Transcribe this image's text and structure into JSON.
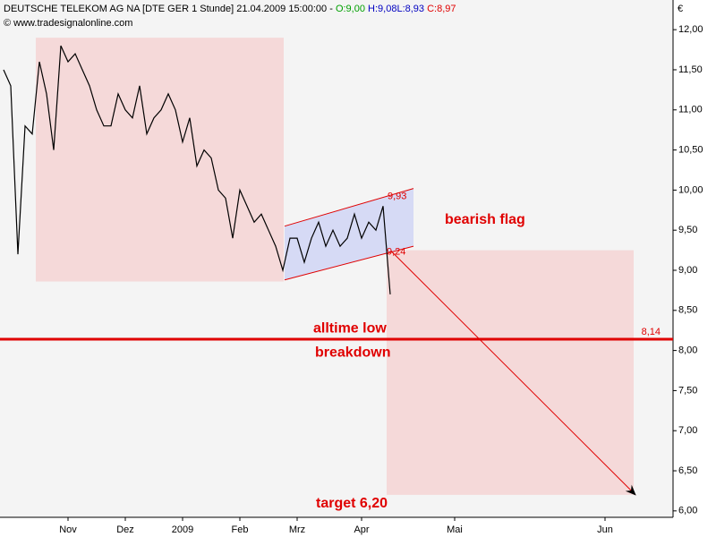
{
  "chart_data": {
    "type": "line",
    "header": {
      "instrument": "DEUTSCHE TELEKOM AG NA [DTE GER  1 Stunde] 21.04.2009 15:00:00 -",
      "open": "O:9,00",
      "high": "H:9,08",
      "low": "L:8,93",
      "close": "C:8,97"
    },
    "copyright": "© www.tradesignalonline.com",
    "y_unit": "€",
    "categories": [
      null,
      null,
      null,
      null,
      null,
      null,
      null,
      null,
      null,
      "Nov",
      null,
      null,
      null,
      null,
      null,
      null,
      null,
      "Dez",
      null,
      null,
      null,
      null,
      null,
      null,
      null,
      "2009",
      null,
      null,
      null,
      null,
      null,
      null,
      null,
      "Feb",
      null,
      null,
      null,
      null,
      null,
      null,
      null,
      "Mrz",
      null,
      null,
      null,
      null,
      null,
      null,
      null,
      null,
      "Apr",
      null,
      null,
      null,
      null,
      null,
      null,
      null,
      null,
      null,
      null,
      null,
      null,
      "Mai",
      null,
      null,
      null,
      null,
      null,
      null,
      null,
      null,
      null,
      null,
      null,
      null,
      null,
      null,
      null,
      null,
      null,
      null,
      null,
      null,
      "Jun",
      null,
      null,
      null,
      null,
      null,
      null,
      null,
      null,
      null
    ],
    "values": [
      11.5,
      11.3,
      9.2,
      10.8,
      10.7,
      11.6,
      11.2,
      10.5,
      11.8,
      11.6,
      11.7,
      11.5,
      11.3,
      11.0,
      10.8,
      10.8,
      11.2,
      11.0,
      10.9,
      11.3,
      10.7,
      10.9,
      11.0,
      11.2,
      11.0,
      10.6,
      10.9,
      10.3,
      10.5,
      10.4,
      10.0,
      9.9,
      9.4,
      10.0,
      9.8,
      9.6,
      9.7,
      9.5,
      9.3,
      9.0,
      9.4,
      9.4,
      9.1,
      9.4,
      9.6,
      9.3,
      9.5,
      9.3,
      9.4,
      9.7,
      9.4,
      9.6,
      9.5,
      9.8,
      8.7,
      null,
      null,
      null,
      null,
      null,
      null,
      null,
      null,
      null,
      null,
      null,
      null,
      null,
      null,
      null,
      null,
      null,
      null,
      null,
      null,
      null,
      null,
      null,
      null,
      null,
      null,
      null,
      null,
      null,
      null,
      null,
      null,
      null,
      null,
      null,
      null,
      null,
      null,
      null
    ],
    "color": "#000000",
    "ylim": [
      5.92,
      12.37
    ],
    "yticks": [
      {
        "value": 6,
        "label": "6,00"
      },
      {
        "value": 6.5,
        "label": "6,50"
      },
      {
        "value": 7,
        "label": "7,00"
      },
      {
        "value": 7.5,
        "label": "7,50"
      },
      {
        "value": 8,
        "label": "8,00"
      },
      {
        "value": 8.5,
        "label": "8,50"
      },
      {
        "value": 9,
        "label": "9,00"
      },
      {
        "value": 9.5,
        "label": "9,50"
      },
      {
        "value": 10,
        "label": "10,00"
      },
      {
        "value": 10.5,
        "label": "10,50"
      },
      {
        "value": 11,
        "label": "11,00"
      },
      {
        "value": 11.5,
        "label": "11,50"
      },
      {
        "value": 12,
        "label": "12,00"
      }
    ],
    "grid": false,
    "zones": [
      {
        "ylim": [
          8.86,
          11.9
        ]
      },
      {
        "ylim": [
          6.2,
          9.25
        ]
      }
    ],
    "flag_channel": {
      "upper": [
        9.55,
        10.02
      ],
      "lower": [
        8.88,
        9.3
      ]
    },
    "annotations": {
      "alltime_low": {
        "value": 8.14,
        "label": "8,14",
        "text": "alltime low",
        "text2": "breakdown"
      },
      "flag_high": {
        "value": 9.93,
        "label": "9,93"
      },
      "flag_low": {
        "value": 9.24,
        "label": "9,24"
      },
      "flag_text": "bearish flag",
      "target": {
        "value": 6.2,
        "text": "target 6,20"
      }
    }
  }
}
